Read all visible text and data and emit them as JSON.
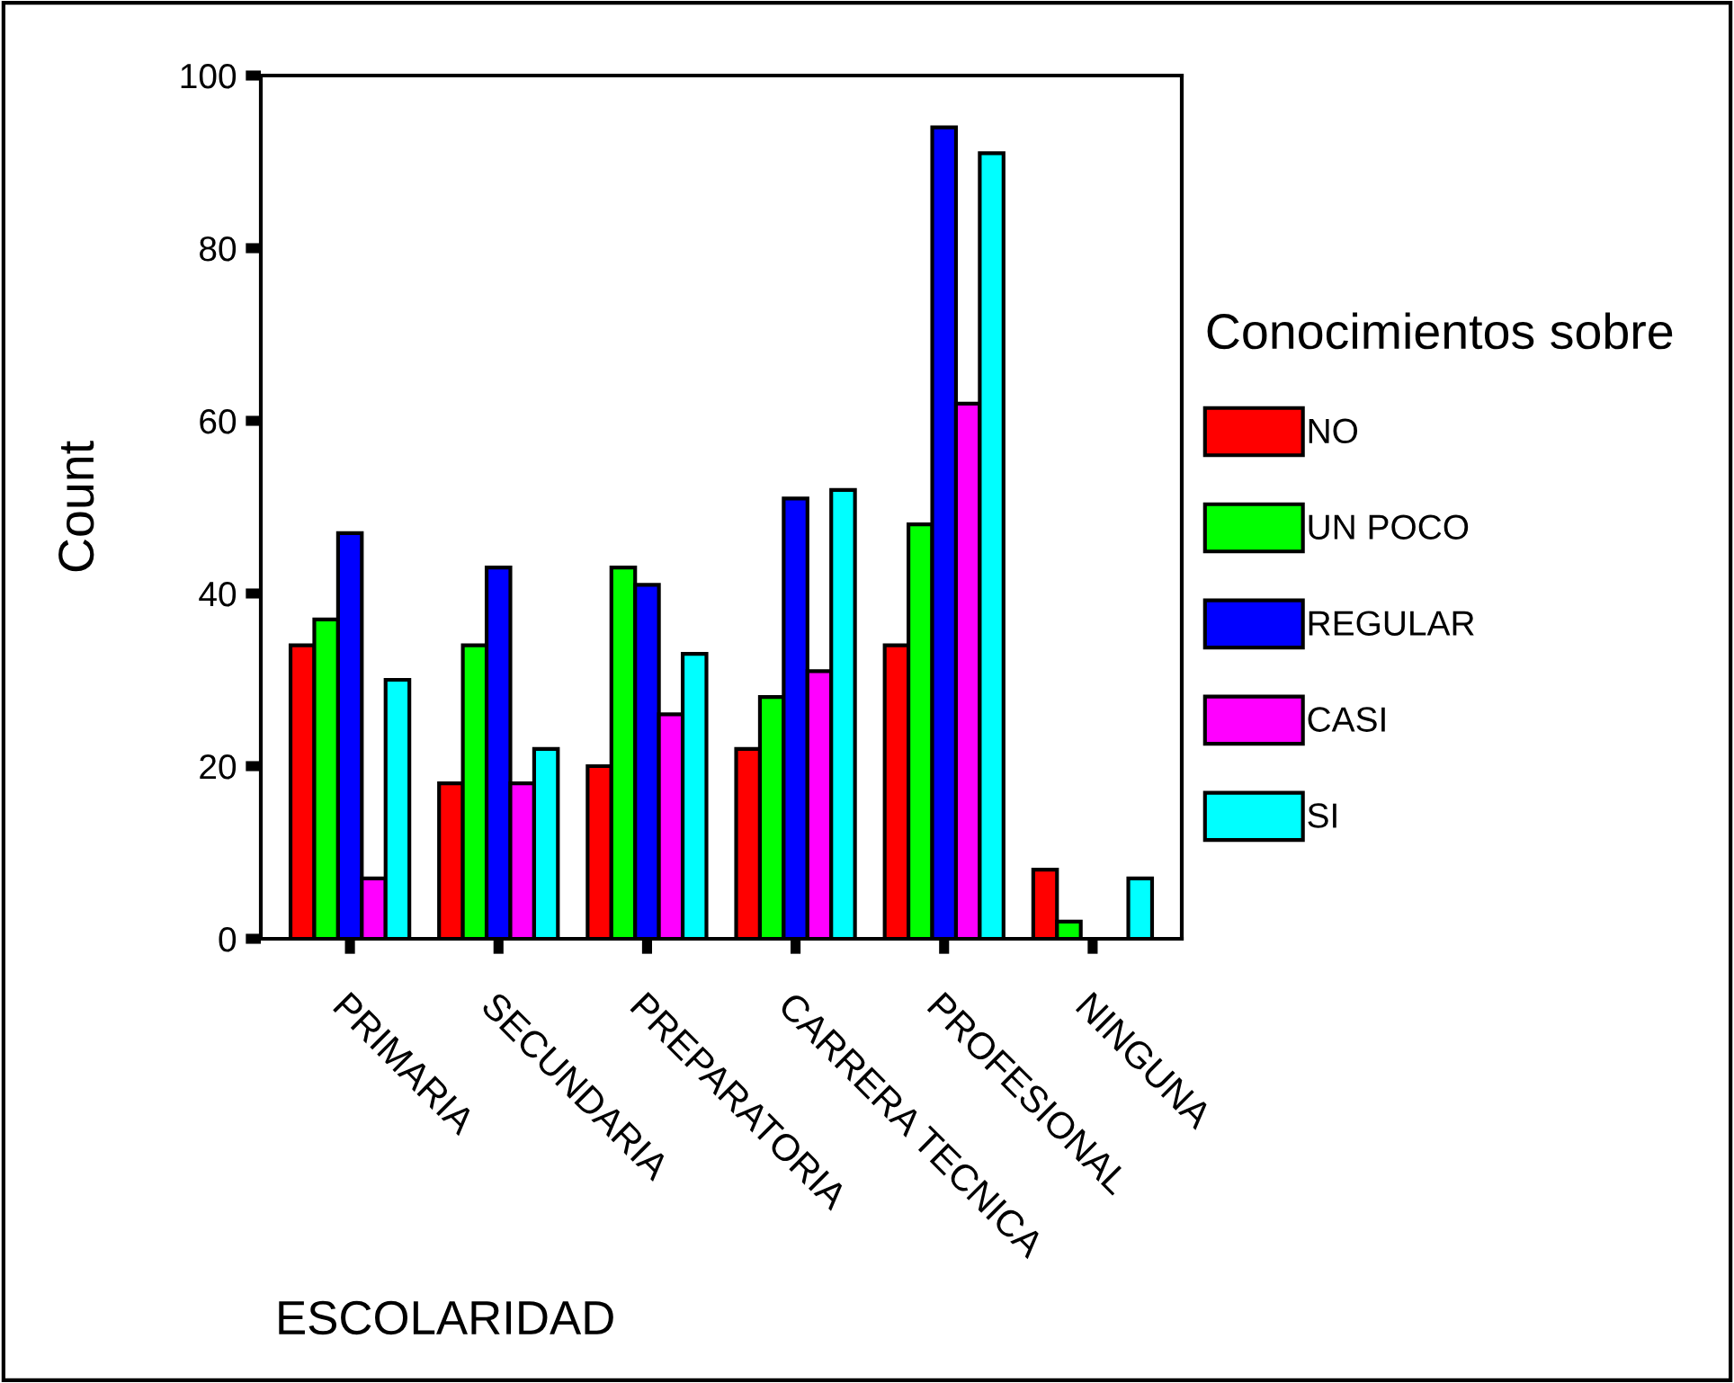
{
  "chart_data": {
    "type": "bar",
    "xlabel": "ESCOLARIDAD",
    "ylabel": "Count",
    "legend_title": "Conocimientos sobre",
    "legend": "right",
    "categories": [
      "PRIMARIA",
      "SECUNDARIA",
      "PREPARATORIA",
      "CARRERA TECNICA",
      "PROFESIONAL",
      "NINGUNA"
    ],
    "ylim": [
      0,
      100
    ],
    "yticks": [
      0,
      20,
      40,
      60,
      80,
      100
    ],
    "grid": false,
    "series": [
      {
        "name": "NO",
        "color": "#ff0000",
        "values": [
          34,
          18,
          20,
          22,
          34,
          8
        ]
      },
      {
        "name": "UN POCO",
        "color": "#00ff00",
        "values": [
          37,
          34,
          43,
          28,
          48,
          2
        ]
      },
      {
        "name": "REGULAR",
        "color": "#0000ff",
        "values": [
          47,
          43,
          41,
          51,
          94,
          null
        ]
      },
      {
        "name": "CASI",
        "color": "#ff00ff",
        "values": [
          7,
          18,
          26,
          31,
          62,
          null
        ]
      },
      {
        "name": "SI",
        "color": "#00ffff",
        "values": [
          30,
          22,
          33,
          52,
          91,
          7
        ]
      }
    ]
  }
}
